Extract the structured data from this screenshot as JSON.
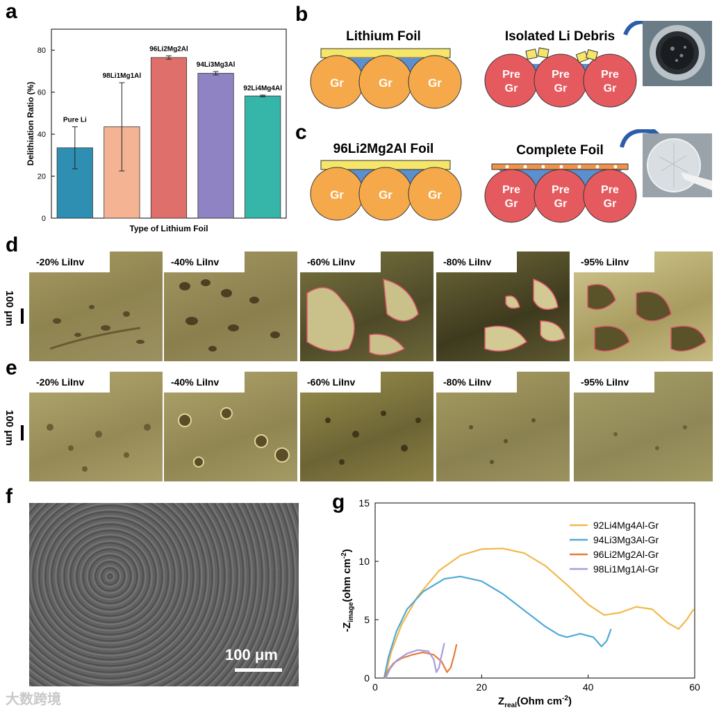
{
  "panels": {
    "a": "a",
    "b": "b",
    "c": "c",
    "d": "d",
    "e": "e",
    "f": "f",
    "g": "g"
  },
  "chart_a": {
    "chart_data": {
      "type": "bar",
      "categories": [
        "Pure Li",
        "98Li1Mg1Al",
        "96Li2Mg2Al",
        "94Li3Mg3Al",
        "92Li4Mg4Al"
      ],
      "values": [
        33.5,
        43.5,
        76.5,
        69.0,
        58.2
      ],
      "errors": [
        10.0,
        21.0,
        0.8,
        0.8,
        0.4
      ],
      "colors": [
        "#2f8fb3",
        "#f4b393",
        "#df6f6b",
        "#8f83c4",
        "#36b5a9"
      ],
      "xlabel": "Type of Lithium Foil",
      "ylabel": "Delithiation Ratio (%)",
      "ylim": [
        0,
        90
      ],
      "yticks": [
        "0",
        "20",
        "40",
        "60",
        "80"
      ]
    }
  },
  "panel_b": {
    "left_title": "Lithium Foil",
    "right_title": "Isolated Li Debris",
    "gr_labels": [
      "Gr",
      "Gr",
      "Gr"
    ],
    "pre_line1": "Pre",
    "pre_line2": "Gr"
  },
  "panel_c": {
    "left_title": "96Li2Mg2Al Foil",
    "right_title": "Complete Foil",
    "gr_labels": [
      "Gr",
      "Gr",
      "Gr"
    ],
    "pre_line1": "Pre",
    "pre_line2": "Gr"
  },
  "panel_d": {
    "labels": [
      "-20% LiInv",
      "-40% LiInv",
      "-60% LiInv",
      "-80% LiInv",
      "-95% LiInv"
    ],
    "scale": "100 μm"
  },
  "panel_e": {
    "labels": [
      "-20% LiInv",
      "-40% LiInv",
      "-60% LiInv",
      "-80% LiInv",
      "-95% LiInv"
    ],
    "scale": "100 μm"
  },
  "panel_f": {
    "scale": "100 μm"
  },
  "chart_g": {
    "chart_data": {
      "type": "line",
      "xlabel_main": "Z",
      "xlabel_sub": "real",
      "xlabel_unit": "(Ohm cm",
      "xlabel_exp": "-2",
      "xlabel_end": ")",
      "ylabel_main": "-Z",
      "ylabel_sub": "image",
      "ylabel_unit": "(ohm cm",
      "ylabel_exp": "-2",
      "ylabel_end": ")",
      "xlim": [
        0,
        60
      ],
      "ylim": [
        0,
        15
      ],
      "xticks": [
        "0",
        "20",
        "40",
        "60"
      ],
      "yticks": [
        "0",
        "5",
        "10",
        "15"
      ],
      "series": [
        {
          "name": "92Li4Mg4Al-Gr",
          "color": "#f2b84a",
          "points": [
            [
              1.8,
              0
            ],
            [
              3,
              2.2
            ],
            [
              5,
              4.6
            ],
            [
              8,
              7.0
            ],
            [
              12,
              9.2
            ],
            [
              16,
              10.5
            ],
            [
              20,
              11.05
            ],
            [
              24,
              11.1
            ],
            [
              28,
              10.7
            ],
            [
              32,
              9.6
            ],
            [
              36,
              8.0
            ],
            [
              40,
              6.3
            ],
            [
              43,
              5.4
            ],
            [
              46,
              5.6
            ],
            [
              49,
              6.1
            ],
            [
              52,
              5.9
            ],
            [
              55,
              4.7
            ],
            [
              57,
              4.2
            ],
            [
              58.5,
              5.0
            ],
            [
              59.8,
              5.9
            ]
          ]
        },
        {
          "name": "94Li3Mg3Al-Gr",
          "color": "#4fa9d8",
          "points": [
            [
              1.7,
              0
            ],
            [
              2.5,
              1.8
            ],
            [
              4,
              4.0
            ],
            [
              6,
              5.9
            ],
            [
              9,
              7.4
            ],
            [
              13,
              8.5
            ],
            [
              16,
              8.7
            ],
            [
              20,
              8.3
            ],
            [
              24,
              7.2
            ],
            [
              28,
              5.8
            ],
            [
              32,
              4.4
            ],
            [
              34.5,
              3.7
            ],
            [
              36,
              3.5
            ],
            [
              38.5,
              3.8
            ],
            [
              41,
              3.5
            ],
            [
              42.5,
              2.7
            ],
            [
              43.5,
              3.2
            ],
            [
              44.3,
              4.2
            ]
          ]
        },
        {
          "name": "96Li2Mg2Al-Gr",
          "color": "#e27d3a",
          "points": [
            [
              1.8,
              0
            ],
            [
              2.5,
              0.7
            ],
            [
              3.5,
              1.3
            ],
            [
              5,
              1.7
            ],
            [
              7,
              2.0
            ],
            [
              9,
              2.2
            ],
            [
              11,
              2.0
            ],
            [
              12.5,
              1.4
            ],
            [
              13.5,
              0.5
            ],
            [
              14.2,
              0.9
            ],
            [
              14.8,
              1.9
            ],
            [
              15.3,
              2.9
            ]
          ]
        },
        {
          "name": "98Li1Mg1Al-Gr",
          "color": "#a99be0",
          "points": [
            [
              2.0,
              0
            ],
            [
              2.8,
              0.8
            ],
            [
              4,
              1.5
            ],
            [
              6,
              2.1
            ],
            [
              8,
              2.4
            ],
            [
              10,
              2.3
            ],
            [
              11,
              1.6
            ],
            [
              11.5,
              0.5
            ],
            [
              12,
              0.9
            ],
            [
              12.5,
              2.0
            ],
            [
              13.0,
              3.0
            ]
          ]
        }
      ]
    }
  },
  "watermark": "大数跨境"
}
